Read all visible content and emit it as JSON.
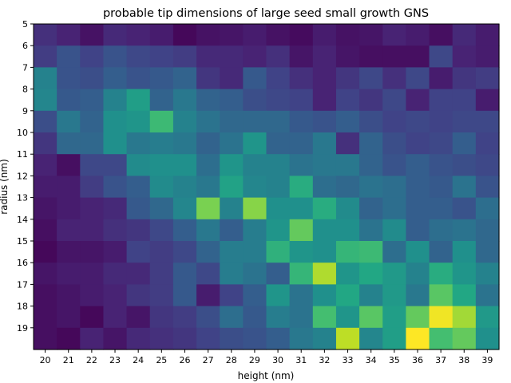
{
  "chart_data": {
    "type": "heatmap",
    "title": "probable tip dimensions of large seed small growth GNS",
    "xlabel": "height (nm)",
    "ylabel": "radius (nm)",
    "colormap": "viridis",
    "x": [
      20,
      21,
      22,
      23,
      24,
      25,
      26,
      27,
      28,
      29,
      30,
      31,
      32,
      33,
      34,
      35,
      36,
      37,
      38,
      39
    ],
    "y": [
      5,
      6,
      7,
      8,
      9,
      10,
      11,
      12,
      13,
      14,
      15,
      16,
      17,
      18,
      19
    ],
    "z": [
      [
        0.14,
        0.1,
        0.05,
        0.12,
        0.1,
        0.08,
        0.02,
        0.05,
        0.06,
        0.08,
        0.05,
        0.03,
        0.08,
        0.05,
        0.06,
        0.1,
        0.08,
        0.04,
        0.12,
        0.08
      ],
      [
        0.18,
        0.26,
        0.2,
        0.26,
        0.22,
        0.2,
        0.18,
        0.12,
        0.12,
        0.1,
        0.14,
        0.06,
        0.1,
        0.06,
        0.04,
        0.04,
        0.04,
        0.22,
        0.1,
        0.08
      ],
      [
        0.44,
        0.26,
        0.24,
        0.3,
        0.26,
        0.28,
        0.32,
        0.16,
        0.12,
        0.28,
        0.2,
        0.14,
        0.1,
        0.16,
        0.22,
        0.14,
        0.22,
        0.08,
        0.16,
        0.18
      ],
      [
        0.46,
        0.28,
        0.3,
        0.44,
        0.56,
        0.32,
        0.4,
        0.32,
        0.3,
        0.24,
        0.22,
        0.2,
        0.1,
        0.2,
        0.16,
        0.22,
        0.1,
        0.2,
        0.2,
        0.08
      ],
      [
        0.24,
        0.4,
        0.32,
        0.5,
        0.52,
        0.68,
        0.44,
        0.38,
        0.34,
        0.34,
        0.34,
        0.28,
        0.26,
        0.3,
        0.24,
        0.2,
        0.22,
        0.2,
        0.22,
        0.22
      ],
      [
        0.16,
        0.34,
        0.34,
        0.5,
        0.4,
        0.42,
        0.4,
        0.32,
        0.38,
        0.52,
        0.32,
        0.32,
        0.4,
        0.14,
        0.32,
        0.24,
        0.2,
        0.22,
        0.3,
        0.2
      ],
      [
        0.1,
        0.04,
        0.22,
        0.22,
        0.48,
        0.5,
        0.5,
        0.36,
        0.52,
        0.44,
        0.44,
        0.38,
        0.4,
        0.4,
        0.32,
        0.26,
        0.3,
        0.26,
        0.24,
        0.22
      ],
      [
        0.08,
        0.08,
        0.18,
        0.26,
        0.3,
        0.48,
        0.44,
        0.4,
        0.58,
        0.46,
        0.44,
        0.62,
        0.36,
        0.34,
        0.38,
        0.36,
        0.3,
        0.28,
        0.38,
        0.26
      ],
      [
        0.06,
        0.08,
        0.1,
        0.12,
        0.28,
        0.34,
        0.46,
        0.8,
        0.44,
        0.82,
        0.5,
        0.5,
        0.62,
        0.48,
        0.32,
        0.36,
        0.3,
        0.3,
        0.26,
        0.36
      ],
      [
        0.04,
        0.1,
        0.1,
        0.14,
        0.16,
        0.22,
        0.3,
        0.4,
        0.3,
        0.42,
        0.52,
        0.76,
        0.5,
        0.5,
        0.38,
        0.48,
        0.3,
        0.36,
        0.38,
        0.34
      ],
      [
        0.02,
        0.06,
        0.06,
        0.08,
        0.2,
        0.18,
        0.22,
        0.32,
        0.42,
        0.42,
        0.64,
        0.52,
        0.5,
        0.66,
        0.68,
        0.36,
        0.5,
        0.32,
        0.5,
        0.34
      ],
      [
        0.06,
        0.08,
        0.08,
        0.12,
        0.12,
        0.18,
        0.28,
        0.22,
        0.42,
        0.38,
        0.3,
        0.66,
        0.88,
        0.52,
        0.6,
        0.54,
        0.44,
        0.62,
        0.52,
        0.44
      ],
      [
        0.04,
        0.06,
        0.08,
        0.1,
        0.16,
        0.18,
        0.28,
        0.08,
        0.2,
        0.3,
        0.52,
        0.38,
        0.5,
        0.6,
        0.44,
        0.54,
        0.4,
        0.74,
        0.6,
        0.38
      ],
      [
        0.04,
        0.06,
        0.02,
        0.1,
        0.06,
        0.16,
        0.18,
        0.24,
        0.36,
        0.28,
        0.42,
        0.38,
        0.7,
        0.52,
        0.74,
        0.56,
        0.76,
        0.98,
        0.86,
        0.54
      ],
      [
        0.04,
        0.02,
        0.1,
        0.06,
        0.12,
        0.14,
        0.16,
        0.2,
        0.24,
        0.26,
        0.3,
        0.4,
        0.44,
        0.9,
        0.46,
        0.56,
        1.0,
        0.7,
        0.76,
        0.5
      ]
    ]
  }
}
